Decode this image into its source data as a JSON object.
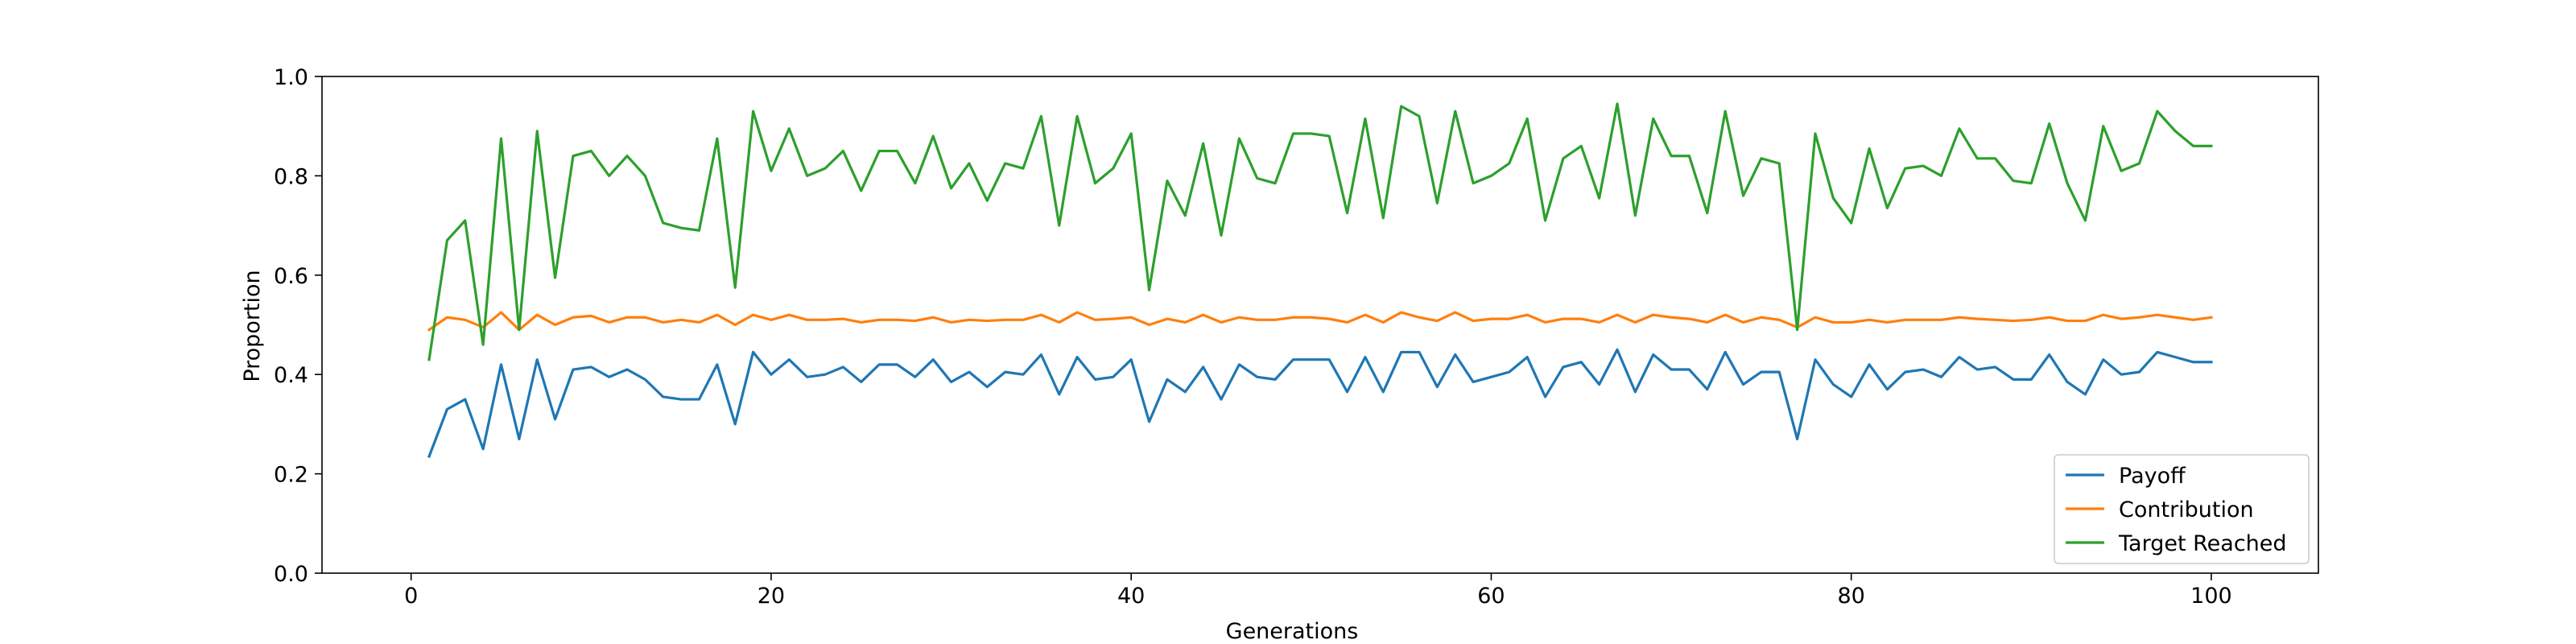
{
  "chart_data": {
    "type": "line",
    "title": "",
    "xlabel": "Generations",
    "ylabel": "Proportion",
    "xlim": [
      -4.95,
      105.95
    ],
    "ylim": [
      0.0,
      1.0
    ],
    "xticks": [
      0,
      20,
      40,
      60,
      80,
      100
    ],
    "yticks": [
      0.0,
      0.2,
      0.4,
      0.6,
      0.8,
      1.0
    ],
    "grid": false,
    "legend_position": "lower-right",
    "x": [
      1,
      2,
      3,
      4,
      5,
      6,
      7,
      8,
      9,
      10,
      11,
      12,
      13,
      14,
      15,
      16,
      17,
      18,
      19,
      20,
      21,
      22,
      23,
      24,
      25,
      26,
      27,
      28,
      29,
      30,
      31,
      32,
      33,
      34,
      35,
      36,
      37,
      38,
      39,
      40,
      41,
      42,
      43,
      44,
      45,
      46,
      47,
      48,
      49,
      50,
      51,
      52,
      53,
      54,
      55,
      56,
      57,
      58,
      59,
      60,
      61,
      62,
      63,
      64,
      65,
      66,
      67,
      68,
      69,
      70,
      71,
      72,
      73,
      74,
      75,
      76,
      77,
      78,
      79,
      80,
      81,
      82,
      83,
      84,
      85,
      86,
      87,
      88,
      89,
      90,
      91,
      92,
      93,
      94,
      95,
      96,
      97,
      98,
      99,
      100
    ],
    "series": [
      {
        "name": "Payoff",
        "color": "#1f77b4",
        "values": [
          0.235,
          0.33,
          0.35,
          0.25,
          0.42,
          0.27,
          0.43,
          0.31,
          0.41,
          0.415,
          0.395,
          0.41,
          0.39,
          0.355,
          0.35,
          0.35,
          0.42,
          0.3,
          0.445,
          0.4,
          0.43,
          0.395,
          0.4,
          0.415,
          0.385,
          0.42,
          0.42,
          0.395,
          0.43,
          0.385,
          0.405,
          0.375,
          0.405,
          0.4,
          0.44,
          0.36,
          0.435,
          0.39,
          0.395,
          0.43,
          0.305,
          0.39,
          0.365,
          0.415,
          0.35,
          0.42,
          0.395,
          0.39,
          0.43,
          0.43,
          0.43,
          0.365,
          0.435,
          0.365,
          0.445,
          0.445,
          0.375,
          0.44,
          0.385,
          0.395,
          0.405,
          0.435,
          0.355,
          0.415,
          0.425,
          0.38,
          0.45,
          0.365,
          0.44,
          0.41,
          0.41,
          0.37,
          0.445,
          0.38,
          0.405,
          0.405,
          0.27,
          0.43,
          0.38,
          0.355,
          0.42,
          0.37,
          0.405,
          0.41,
          0.395,
          0.435,
          0.41,
          0.415,
          0.39,
          0.39,
          0.44,
          0.385,
          0.36,
          0.43,
          0.4,
          0.405,
          0.445,
          0.435,
          0.425,
          0.425
        ]
      },
      {
        "name": "Contribution",
        "color": "#ff7f0e",
        "values": [
          0.49,
          0.515,
          0.51,
          0.495,
          0.525,
          0.49,
          0.52,
          0.5,
          0.515,
          0.518,
          0.505,
          0.515,
          0.515,
          0.505,
          0.51,
          0.505,
          0.52,
          0.5,
          0.52,
          0.51,
          0.52,
          0.51,
          0.51,
          0.512,
          0.505,
          0.51,
          0.51,
          0.508,
          0.515,
          0.505,
          0.51,
          0.508,
          0.51,
          0.51,
          0.52,
          0.505,
          0.525,
          0.51,
          0.512,
          0.515,
          0.5,
          0.512,
          0.505,
          0.52,
          0.505,
          0.515,
          0.51,
          0.51,
          0.515,
          0.515,
          0.512,
          0.505,
          0.52,
          0.505,
          0.525,
          0.515,
          0.508,
          0.525,
          0.508,
          0.512,
          0.512,
          0.52,
          0.505,
          0.512,
          0.512,
          0.505,
          0.52,
          0.505,
          0.52,
          0.515,
          0.512,
          0.505,
          0.52,
          0.505,
          0.515,
          0.51,
          0.495,
          0.515,
          0.505,
          0.505,
          0.51,
          0.505,
          0.51,
          0.51,
          0.51,
          0.515,
          0.512,
          0.51,
          0.508,
          0.51,
          0.515,
          0.508,
          0.508,
          0.52,
          0.512,
          0.515,
          0.52,
          0.515,
          0.51,
          0.515
        ]
      },
      {
        "name": "Target Reached",
        "color": "#2ca02c",
        "values": [
          0.43,
          0.67,
          0.71,
          0.46,
          0.875,
          0.49,
          0.89,
          0.595,
          0.84,
          0.85,
          0.8,
          0.84,
          0.8,
          0.705,
          0.695,
          0.69,
          0.875,
          0.575,
          0.93,
          0.81,
          0.895,
          0.8,
          0.815,
          0.85,
          0.77,
          0.85,
          0.85,
          0.785,
          0.88,
          0.775,
          0.825,
          0.75,
          0.825,
          0.815,
          0.92,
          0.7,
          0.92,
          0.785,
          0.815,
          0.885,
          0.57,
          0.79,
          0.72,
          0.865,
          0.68,
          0.875,
          0.795,
          0.785,
          0.885,
          0.885,
          0.88,
          0.725,
          0.915,
          0.715,
          0.94,
          0.92,
          0.745,
          0.93,
          0.785,
          0.8,
          0.825,
          0.915,
          0.71,
          0.835,
          0.86,
          0.755,
          0.945,
          0.72,
          0.915,
          0.84,
          0.84,
          0.725,
          0.93,
          0.76,
          0.835,
          0.825,
          0.49,
          0.885,
          0.755,
          0.705,
          0.855,
          0.735,
          0.815,
          0.82,
          0.8,
          0.895,
          0.835,
          0.835,
          0.79,
          0.785,
          0.905,
          0.785,
          0.71,
          0.9,
          0.81,
          0.825,
          0.93,
          0.89,
          0.86,
          0.86
        ]
      }
    ]
  }
}
